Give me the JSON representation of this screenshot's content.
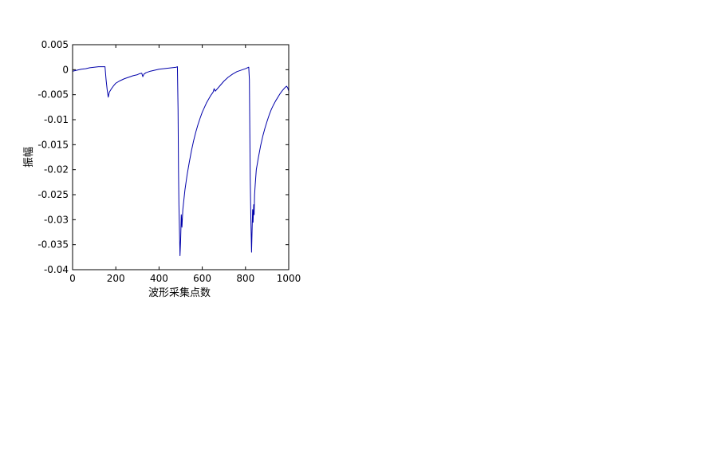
{
  "chart_data": {
    "type": "line",
    "xlabel": "波形采集点数",
    "ylabel": "振幅",
    "xlim": [
      0,
      1000
    ],
    "ylim": [
      -0.04,
      0.005
    ],
    "grid": false,
    "x_ticks": [
      0,
      200,
      400,
      600,
      800,
      1000
    ],
    "x_tick_labels": [
      "0",
      "200",
      "400",
      "600",
      "800",
      "1000"
    ],
    "y_ticks": [
      0.005,
      0,
      -0.005,
      -0.01,
      -0.015,
      -0.02,
      -0.025,
      -0.03,
      -0.035,
      -0.04
    ],
    "y_tick_labels": [
      "0.005",
      "0",
      "-0.005",
      "-0.01",
      "-0.015",
      "-0.02",
      "-0.025",
      "-0.03",
      "-0.035",
      "-0.04"
    ],
    "line_color": "#0000aa",
    "series": [
      {
        "x": [
          0,
          20,
          40,
          60,
          80,
          100,
          120,
          150,
          155,
          160,
          165,
          170,
          180,
          190,
          200,
          220,
          240,
          260,
          280,
          300,
          310,
          320,
          325,
          330,
          340,
          360,
          380,
          400,
          420,
          440,
          460,
          480,
          485,
          488,
          490,
          492,
          495,
          497,
          500,
          503,
          506,
          510,
          515,
          520,
          530,
          540,
          550,
          560,
          570,
          580,
          590,
          600,
          620,
          640,
          650,
          655,
          660,
          680,
          700,
          720,
          740,
          760,
          780,
          800,
          810,
          815,
          818,
          820,
          822,
          825,
          828,
          830,
          833,
          835,
          838,
          840,
          842,
          845,
          850,
          860,
          870,
          880,
          890,
          900,
          910,
          920,
          930,
          940,
          950,
          960,
          970,
          980,
          990,
          995,
          1000
        ],
        "y": [
          -0.0003,
          -0.0001,
          0.0001,
          0.0002,
          0.0004,
          0.0005,
          0.0006,
          0.0006,
          -0.002,
          -0.004,
          -0.0055,
          -0.0045,
          -0.0038,
          -0.0032,
          -0.0027,
          -0.0022,
          -0.0018,
          -0.0015,
          -0.0012,
          -0.001,
          -0.0008,
          -0.0007,
          -0.0014,
          -0.0009,
          -0.0006,
          -0.0003,
          -0.0001,
          0.0001,
          0.0002,
          0.0003,
          0.0004,
          0.0005,
          0.0006,
          -0.008,
          -0.02,
          -0.027,
          -0.033,
          -0.0372,
          -0.034,
          -0.029,
          -0.0315,
          -0.028,
          -0.026,
          -0.024,
          -0.021,
          -0.0185,
          -0.0162,
          -0.0142,
          -0.0125,
          -0.011,
          -0.0097,
          -0.0085,
          -0.0066,
          -0.0051,
          -0.0045,
          -0.0038,
          -0.0043,
          -0.0033,
          -0.0023,
          -0.0015,
          -0.0009,
          -0.0004,
          -0.0001,
          0.0002,
          0.0004,
          0.0005,
          -0.002,
          -0.012,
          -0.022,
          -0.03,
          -0.0365,
          -0.033,
          -0.028,
          -0.0305,
          -0.027,
          -0.029,
          -0.025,
          -0.023,
          -0.02,
          -0.0175,
          -0.0152,
          -0.0133,
          -0.0117,
          -0.0103,
          -0.009,
          -0.0079,
          -0.007,
          -0.0062,
          -0.0055,
          -0.0048,
          -0.0042,
          -0.0037,
          -0.0033,
          -0.0036,
          -0.0043
        ]
      }
    ]
  }
}
